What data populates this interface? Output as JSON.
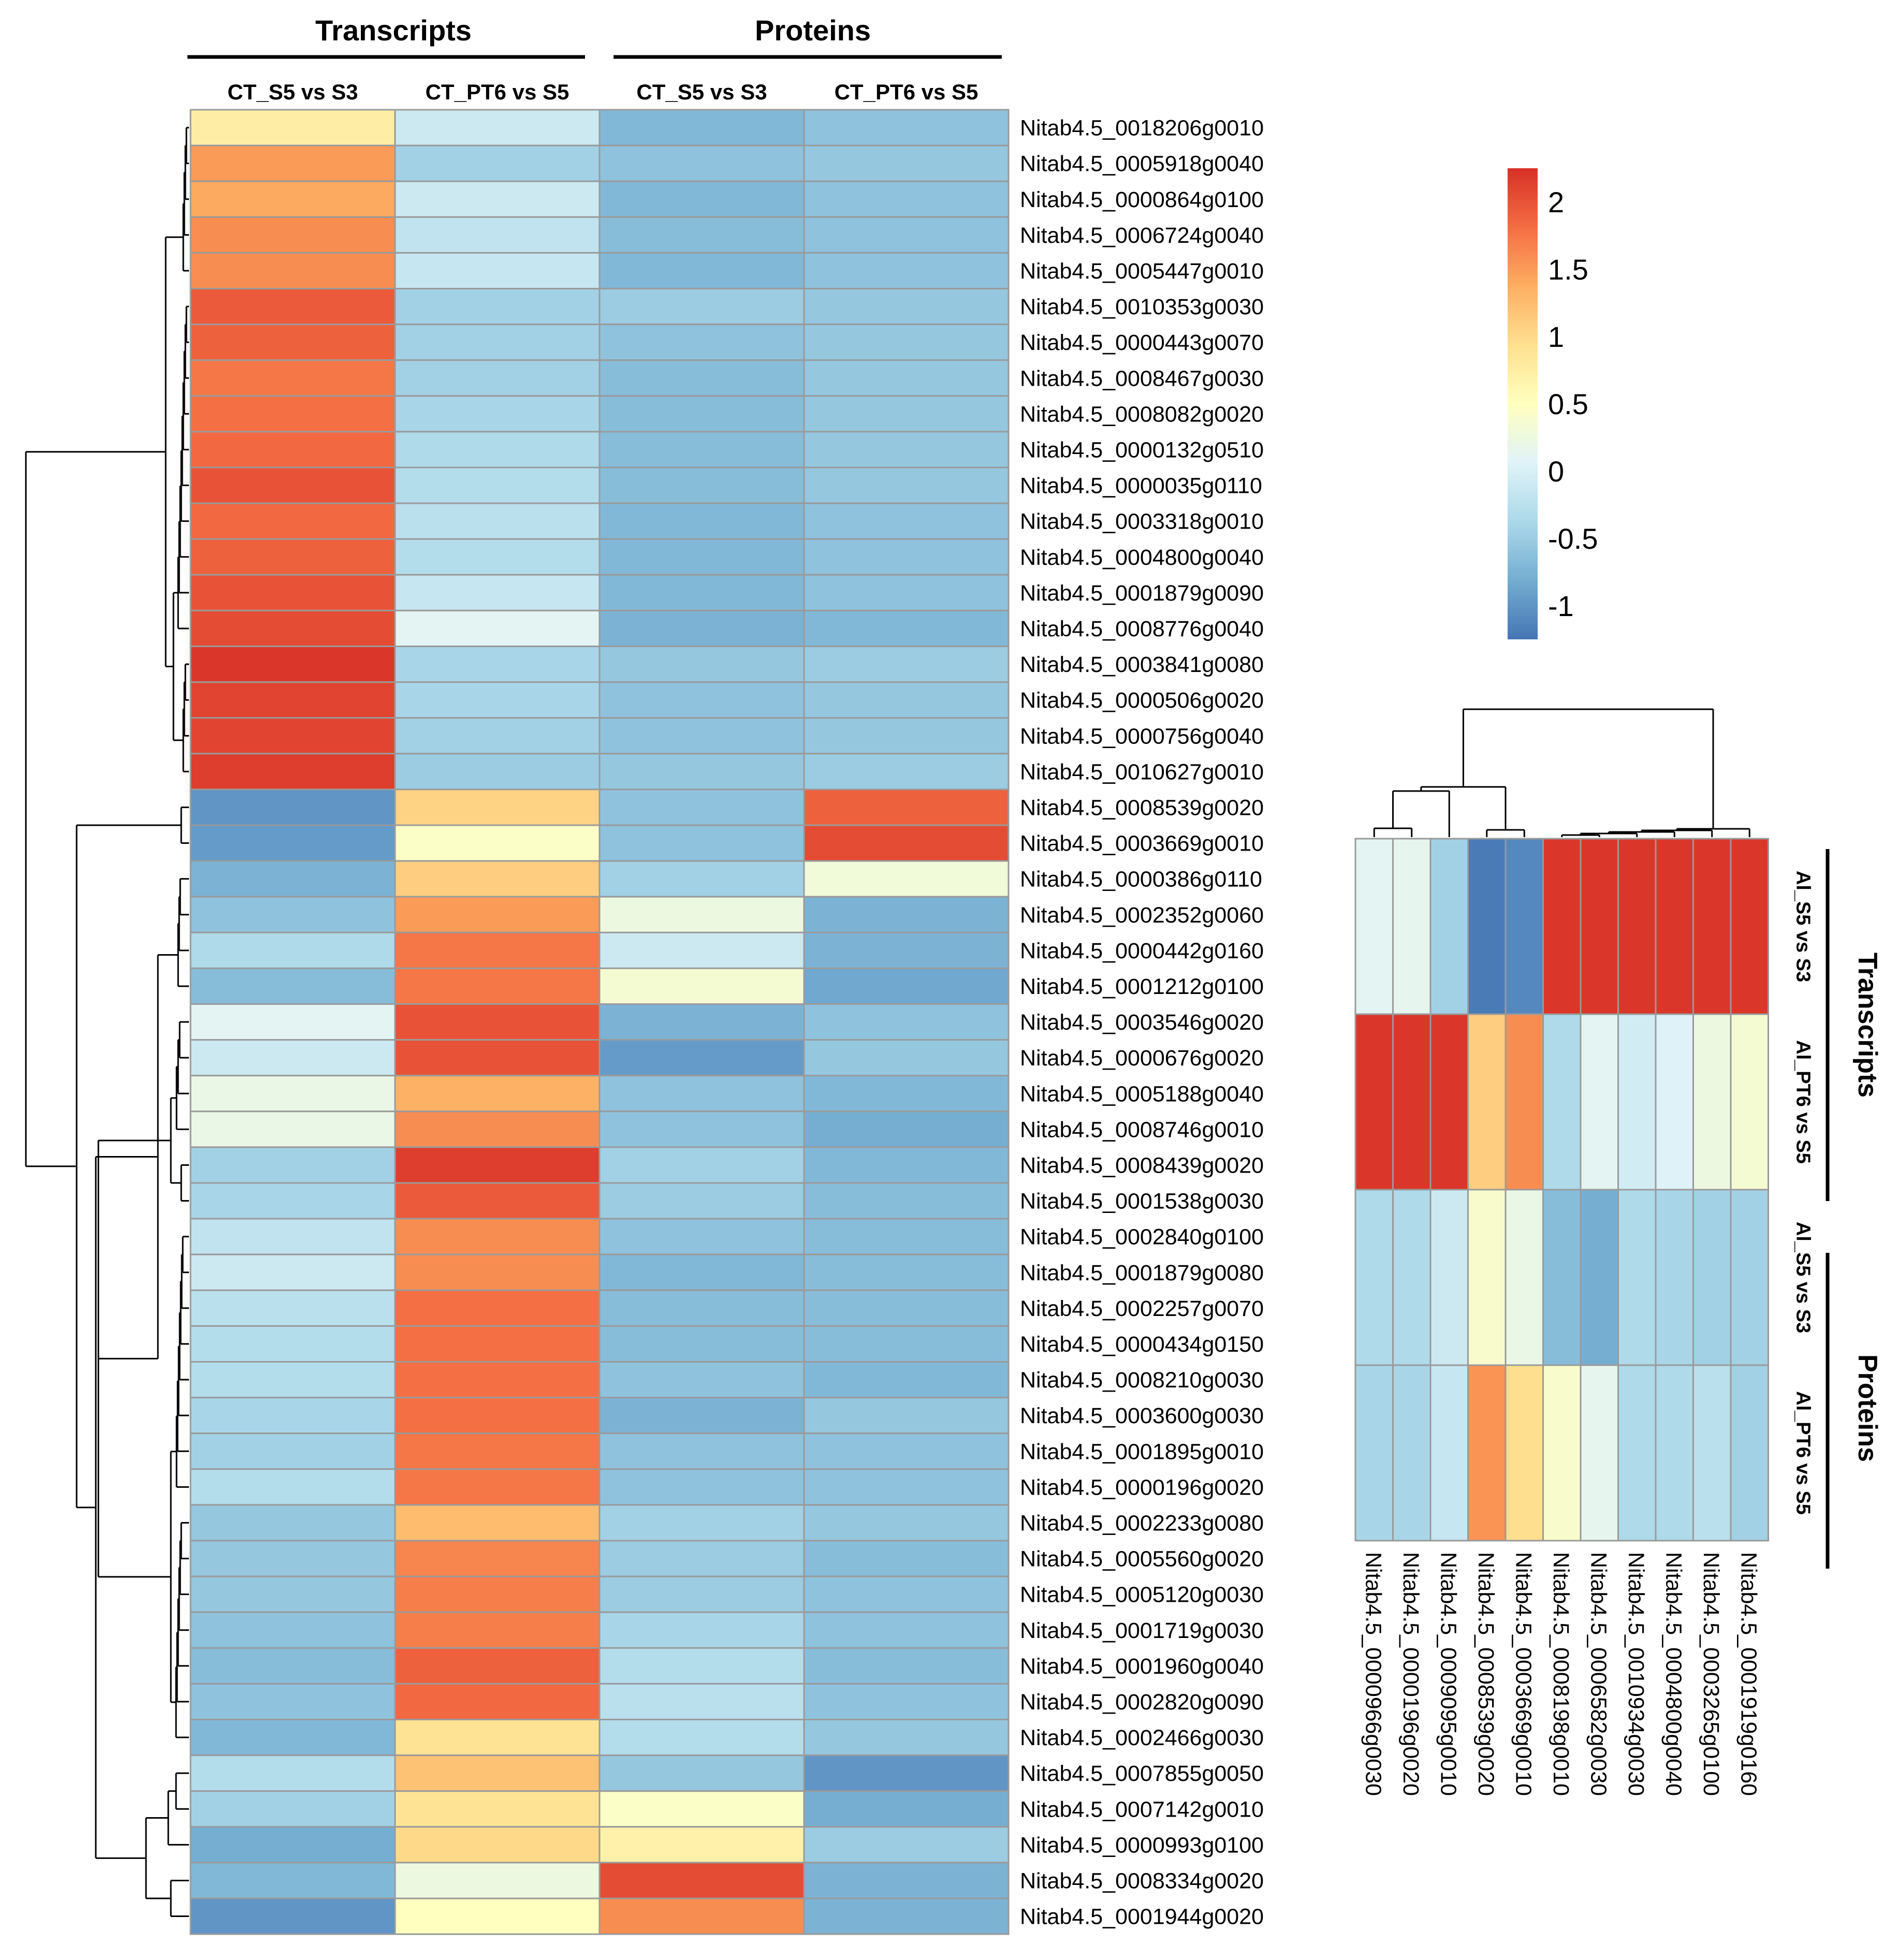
{
  "chart_data": [
    {
      "type": "heatmap",
      "name": "ct",
      "title": "",
      "group_headers": [
        "Transcripts",
        "Proteins"
      ],
      "columns": [
        "CT_S5 vs S3",
        "CT_PT6 vs S5",
        "CT_S5 vs S3",
        "CT_PT6 vs S5"
      ],
      "rows": [
        "Nitab4.5_0018206g0010",
        "Nitab4.5_0005918g0040",
        "Nitab4.5_0000864g0100",
        "Nitab4.5_0006724g0040",
        "Nitab4.5_0005447g0010",
        "Nitab4.5_0010353g0030",
        "Nitab4.5_0000443g0070",
        "Nitab4.5_0008467g0030",
        "Nitab4.5_0008082g0020",
        "Nitab4.5_0000132g0510",
        "Nitab4.5_0000035g0110",
        "Nitab4.5_0003318g0010",
        "Nitab4.5_0004800g0040",
        "Nitab4.5_0001879g0090",
        "Nitab4.5_0008776g0040",
        "Nitab4.5_0003841g0080",
        "Nitab4.5_0000506g0020",
        "Nitab4.5_0000756g0040",
        "Nitab4.5_0010627g0010",
        "Nitab4.5_0008539g0020",
        "Nitab4.5_0003669g0010",
        "Nitab4.5_0000386g0110",
        "Nitab4.5_0002352g0060",
        "Nitab4.5_0000442g0160",
        "Nitab4.5_0001212g0100",
        "Nitab4.5_0003546g0020",
        "Nitab4.5_0000676g0020",
        "Nitab4.5_0005188g0040",
        "Nitab4.5_0008746g0010",
        "Nitab4.5_0008439g0020",
        "Nitab4.5_0001538g0030",
        "Nitab4.5_0002840g0100",
        "Nitab4.5_0001879g0080",
        "Nitab4.5_0002257g0070",
        "Nitab4.5_0000434g0150",
        "Nitab4.5_0008210g0030",
        "Nitab4.5_0003600g0030",
        "Nitab4.5_0001895g0010",
        "Nitab4.5_0000196g0020",
        "Nitab4.5_0002233g0080",
        "Nitab4.5_0005560g0020",
        "Nitab4.5_0005120g0030",
        "Nitab4.5_0001719g0030",
        "Nitab4.5_0001960g0040",
        "Nitab4.5_0002820g0090",
        "Nitab4.5_0002466g0030",
        "Nitab4.5_0007855g0050",
        "Nitab4.5_0007142g0010",
        "Nitab4.5_0000993g0100",
        "Nitab4.5_0008334g0020",
        "Nitab4.5_0001944g0020"
      ],
      "values": [
        [
          0.75,
          -0.1,
          -0.7,
          -0.6
        ],
        [
          1.5,
          -0.45,
          -0.6,
          -0.55
        ],
        [
          1.4,
          -0.1,
          -0.7,
          -0.6
        ],
        [
          1.6,
          -0.2,
          -0.65,
          -0.6
        ],
        [
          1.6,
          -0.15,
          -0.7,
          -0.6
        ],
        [
          1.95,
          -0.45,
          -0.5,
          -0.55
        ],
        [
          1.9,
          -0.45,
          -0.6,
          -0.55
        ],
        [
          1.75,
          -0.45,
          -0.65,
          -0.55
        ],
        [
          1.8,
          -0.4,
          -0.65,
          -0.55
        ],
        [
          1.85,
          -0.35,
          -0.65,
          -0.55
        ],
        [
          2.0,
          -0.3,
          -0.65,
          -0.55
        ],
        [
          1.85,
          -0.25,
          -0.7,
          -0.6
        ],
        [
          1.9,
          -0.3,
          -0.7,
          -0.6
        ],
        [
          2.0,
          -0.15,
          -0.7,
          -0.6
        ],
        [
          2.05,
          0.1,
          -0.75,
          -0.7
        ],
        [
          2.2,
          -0.4,
          -0.55,
          -0.5
        ],
        [
          2.1,
          -0.4,
          -0.6,
          -0.55
        ],
        [
          2.1,
          -0.45,
          -0.6,
          -0.55
        ],
        [
          2.15,
          -0.5,
          -0.55,
          -0.5
        ],
        [
          -1.0,
          1.05,
          -0.6,
          1.9
        ],
        [
          -0.95,
          0.45,
          -0.6,
          2.05
        ],
        [
          -0.75,
          1.1,
          -0.45,
          0.3
        ],
        [
          -0.6,
          1.5,
          0.25,
          -0.75
        ],
        [
          -0.35,
          1.75,
          -0.1,
          -0.75
        ],
        [
          -0.65,
          1.75,
          0.35,
          -0.85
        ],
        [
          0.1,
          2.0,
          -0.75,
          -0.6
        ],
        [
          -0.1,
          2.0,
          -0.95,
          -0.55
        ],
        [
          0.2,
          1.35,
          -0.6,
          -0.7
        ],
        [
          0.2,
          1.6,
          -0.6,
          -0.8
        ],
        [
          -0.45,
          2.15,
          -0.45,
          -0.7
        ],
        [
          -0.4,
          1.95,
          -0.5,
          -0.65
        ],
        [
          -0.2,
          1.6,
          -0.6,
          -0.65
        ],
        [
          -0.1,
          1.6,
          -0.7,
          -0.65
        ],
        [
          -0.25,
          1.8,
          -0.65,
          -0.65
        ],
        [
          -0.3,
          1.8,
          -0.65,
          -0.65
        ],
        [
          -0.3,
          1.8,
          -0.6,
          -0.7
        ],
        [
          -0.4,
          1.8,
          -0.75,
          -0.55
        ],
        [
          -0.45,
          1.75,
          -0.6,
          -0.6
        ],
        [
          -0.3,
          1.75,
          -0.6,
          -0.6
        ],
        [
          -0.55,
          1.25,
          -0.45,
          -0.55
        ],
        [
          -0.55,
          1.65,
          -0.5,
          -0.65
        ],
        [
          -0.55,
          1.7,
          -0.5,
          -0.6
        ],
        [
          -0.6,
          1.7,
          -0.4,
          -0.6
        ],
        [
          -0.65,
          1.9,
          -0.3,
          -0.65
        ],
        [
          -0.6,
          1.85,
          -0.25,
          -0.6
        ],
        [
          -0.7,
          0.9,
          -0.3,
          -0.55
        ],
        [
          -0.3,
          1.2,
          -0.55,
          -1.0
        ],
        [
          -0.45,
          0.9,
          0.45,
          -0.8
        ],
        [
          -0.8,
          1.0,
          0.7,
          -0.5
        ],
        [
          -0.7,
          0.25,
          2.05,
          -0.75
        ],
        [
          -1.0,
          0.5,
          1.6,
          -0.75
        ]
      ]
    },
    {
      "type": "heatmap",
      "name": "al",
      "title": "",
      "group_headers": [
        "Transcripts",
        "Proteins"
      ],
      "rows": [
        "Al_S5 vs S3",
        "Al_PT6 vs S5",
        "Al_S5 vs S3",
        "Al_PT6 vs S5"
      ],
      "columns": [
        "Nitab4.5_0000966g0030",
        "Nitab4.5_0000196g0020",
        "Nitab4.5_0009095g0010",
        "Nitab4.5_0008539g0020",
        "Nitab4.5_0003669g0010",
        "Nitab4.5_0008198g0010",
        "Nitab4.5_0006582g0030",
        "Nitab4.5_0010934g0030",
        "Nitab4.5_0004800g0040",
        "Nitab4.5_0003265g0100",
        "Nitab4.5_0001919g0160"
      ],
      "values": [
        [
          0.1,
          0.15,
          -0.45,
          -1.2,
          -1.1,
          2.2,
          2.2,
          2.2,
          2.2,
          2.2,
          2.2
        ],
        [
          2.2,
          2.2,
          2.2,
          1.1,
          1.6,
          -0.35,
          0.1,
          -0.05,
          0.05,
          0.25,
          0.35
        ],
        [
          -0.35,
          -0.35,
          -0.1,
          0.4,
          0.2,
          -0.65,
          -0.8,
          -0.35,
          -0.4,
          -0.45,
          -0.45
        ],
        [
          -0.4,
          -0.4,
          -0.15,
          1.55,
          0.95,
          0.4,
          0.15,
          -0.35,
          -0.35,
          -0.25,
          -0.45
        ]
      ]
    },
    {
      "type": "colorbar",
      "name": "legend",
      "ticks": [
        "2",
        "1.5",
        "1",
        "0.5",
        "0",
        "-0.5",
        "-1"
      ],
      "tick_values": [
        2,
        1.5,
        1,
        0.5,
        0,
        -0.5,
        -1
      ],
      "range": [
        -1.25,
        2.25
      ],
      "colors": [
        "#d73027",
        "#f46d43",
        "#fdae61",
        "#fee090",
        "#ffffbf",
        "#e0f3f8",
        "#abd9e9",
        "#74add1",
        "#4575b4"
      ]
    }
  ]
}
